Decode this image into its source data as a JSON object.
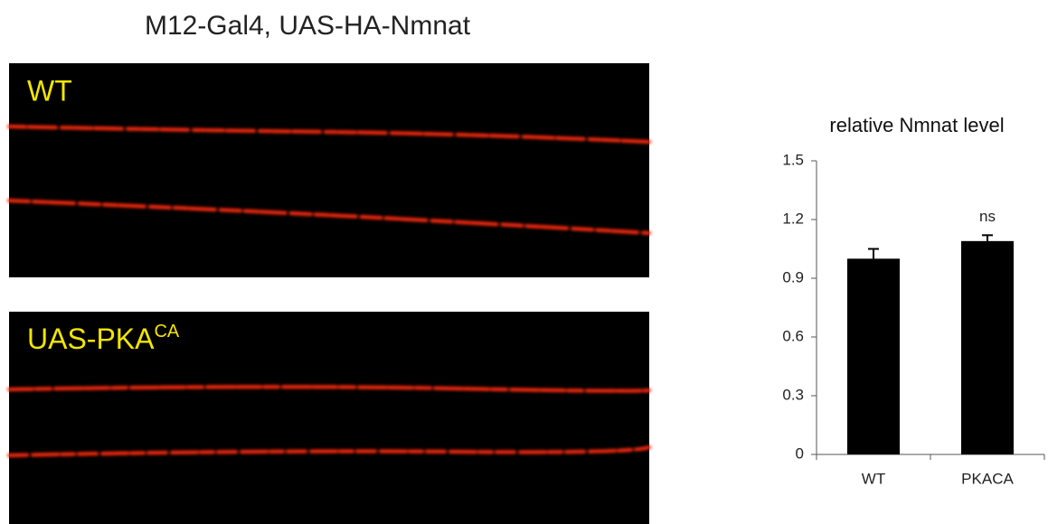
{
  "header": {
    "title": "M12-Gal4, UAS-HA-Nmnat"
  },
  "panels": [
    {
      "label": "WT"
    },
    {
      "label": "UAS-PKA",
      "superscript": "CA"
    }
  ],
  "chart_data": {
    "type": "bar",
    "title": "relative Nmnat level",
    "categories": [
      "WT",
      "PKACA"
    ],
    "values": [
      1.0,
      1.09
    ],
    "errors": [
      0.05,
      0.03
    ],
    "color": "#000000",
    "annotation": "ns",
    "ylim": [
      0,
      1.5
    ],
    "yticks": [
      0,
      0.3,
      0.6,
      0.9,
      1.2,
      1.5
    ]
  }
}
